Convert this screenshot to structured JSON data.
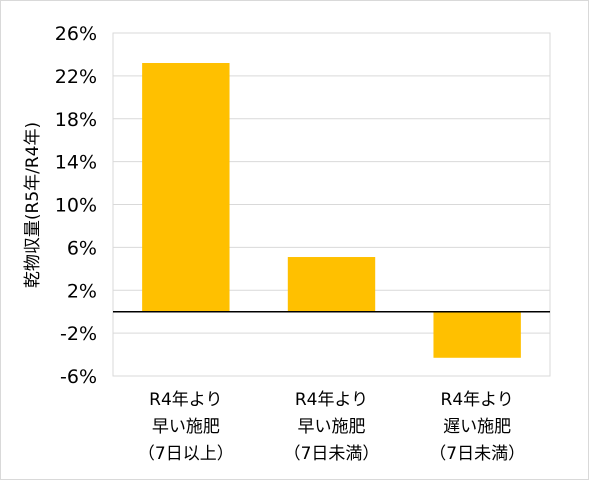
{
  "chart_data": {
    "type": "bar",
    "ylabel": "乾物収量(R5年/R4年)",
    "ylim": [
      -6,
      26
    ],
    "yticks": [
      26,
      22,
      18,
      14,
      10,
      6,
      2,
      -2,
      -6
    ],
    "ytick_labels": [
      "26%",
      "22%",
      "18%",
      "14%",
      "10%",
      "6%",
      "2%",
      "-2%",
      "-6%"
    ],
    "grid": true,
    "baseline": 0,
    "bar_color": "#FFC000",
    "categories": [
      [
        "R4年より",
        "早い施肥",
        "（7日以上）"
      ],
      [
        "R4年より",
        "早い施肥",
        "（7日未満）"
      ],
      [
        "R4年より",
        "遅い施肥",
        "（7日未満）"
      ]
    ],
    "values": [
      23.2,
      5.1,
      -4.3
    ]
  }
}
